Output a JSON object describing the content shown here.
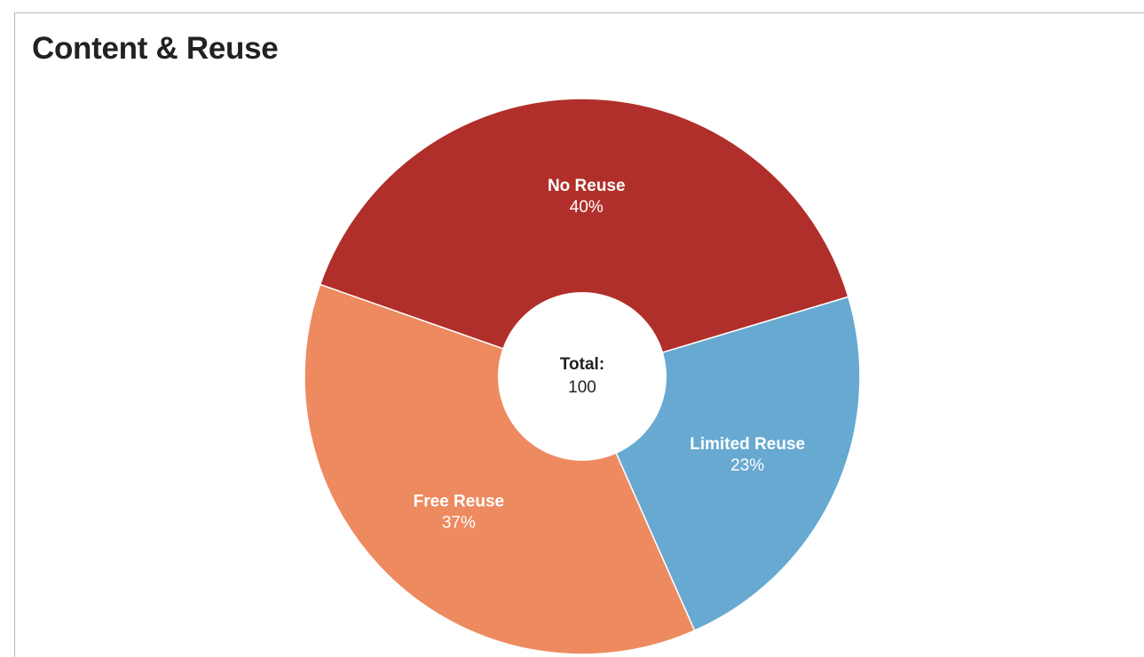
{
  "panel": {
    "title": "Content & Reuse"
  },
  "chart_data": {
    "type": "pie",
    "title": "Content & Reuse",
    "center": {
      "label": "Total:",
      "value": "100"
    },
    "slices": [
      {
        "label": "Limited Reuse",
        "value": 23,
        "percent_text": "23%",
        "color": "#67a9d0"
      },
      {
        "label": "Free Reuse",
        "value": 37,
        "percent_text": "37%",
        "color": "#ee8a60"
      },
      {
        "label": "No Reuse",
        "value": 40,
        "percent_text": "40%",
        "color": "#b12f2a"
      }
    ]
  }
}
